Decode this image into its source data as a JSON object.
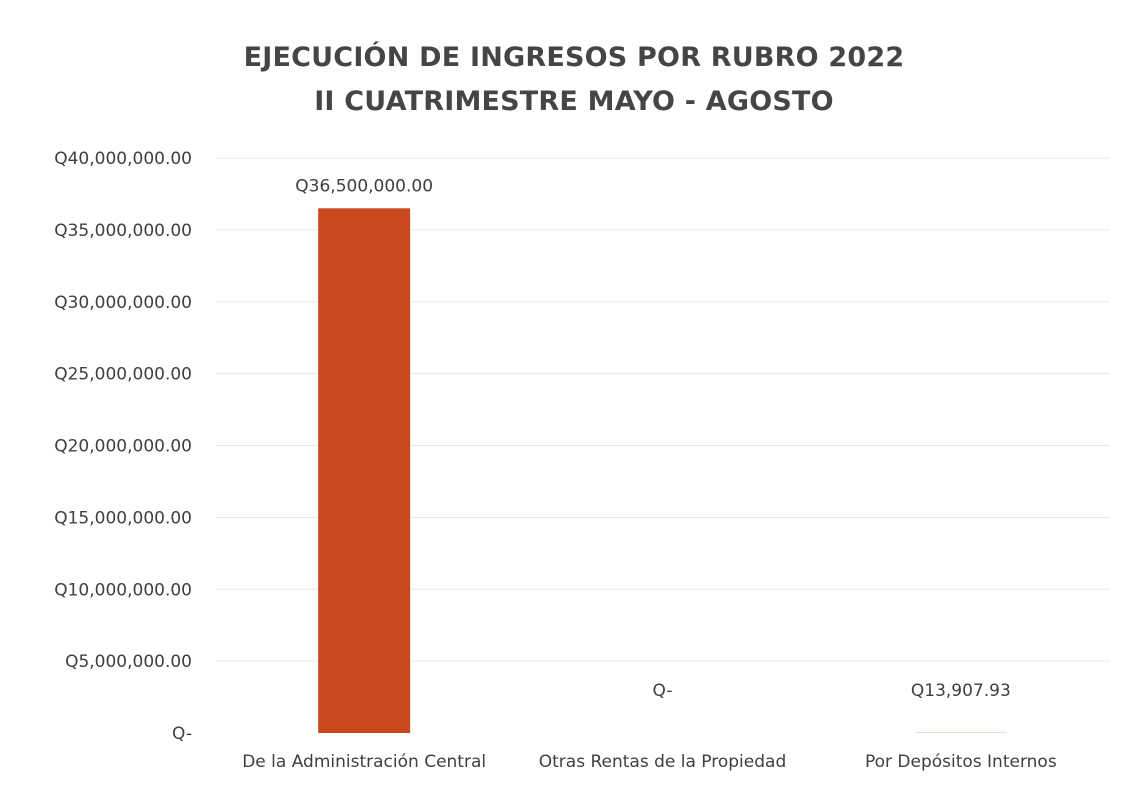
{
  "chart_data": {
    "type": "bar",
    "title": "EJECUCIÓN DE INGRESOS POR RUBRO 2022",
    "subtitle": "II CUATRIMESTRE MAYO - AGOSTO",
    "categories": [
      "De la Administración Central",
      "Otras Rentas de la Propiedad",
      "Por Depósitos Internos"
    ],
    "values": [
      36500000,
      0,
      13907.93
    ],
    "data_labels": [
      "Q36,500,000.00",
      "Q-",
      "Q13,907.93"
    ],
    "y_ticks": [
      0,
      5000000,
      10000000,
      15000000,
      20000000,
      25000000,
      30000000,
      35000000,
      40000000
    ],
    "y_tick_labels": [
      "Q-",
      "Q5,000,000.00",
      "Q10,000,000.00",
      "Q15,000,000.00",
      "Q20,000,000.00",
      "Q25,000,000.00",
      "Q30,000,000.00",
      "Q35,000,000.00",
      "Q40,000,000.00"
    ],
    "ylim": [
      0,
      40000000
    ],
    "xlabel": "",
    "ylabel": "",
    "grid": true,
    "legend": "none",
    "colors": {
      "bar": "#C8491D",
      "grid": "#e6e6e6",
      "text": "#3f3f3f",
      "title": "#454545"
    }
  }
}
